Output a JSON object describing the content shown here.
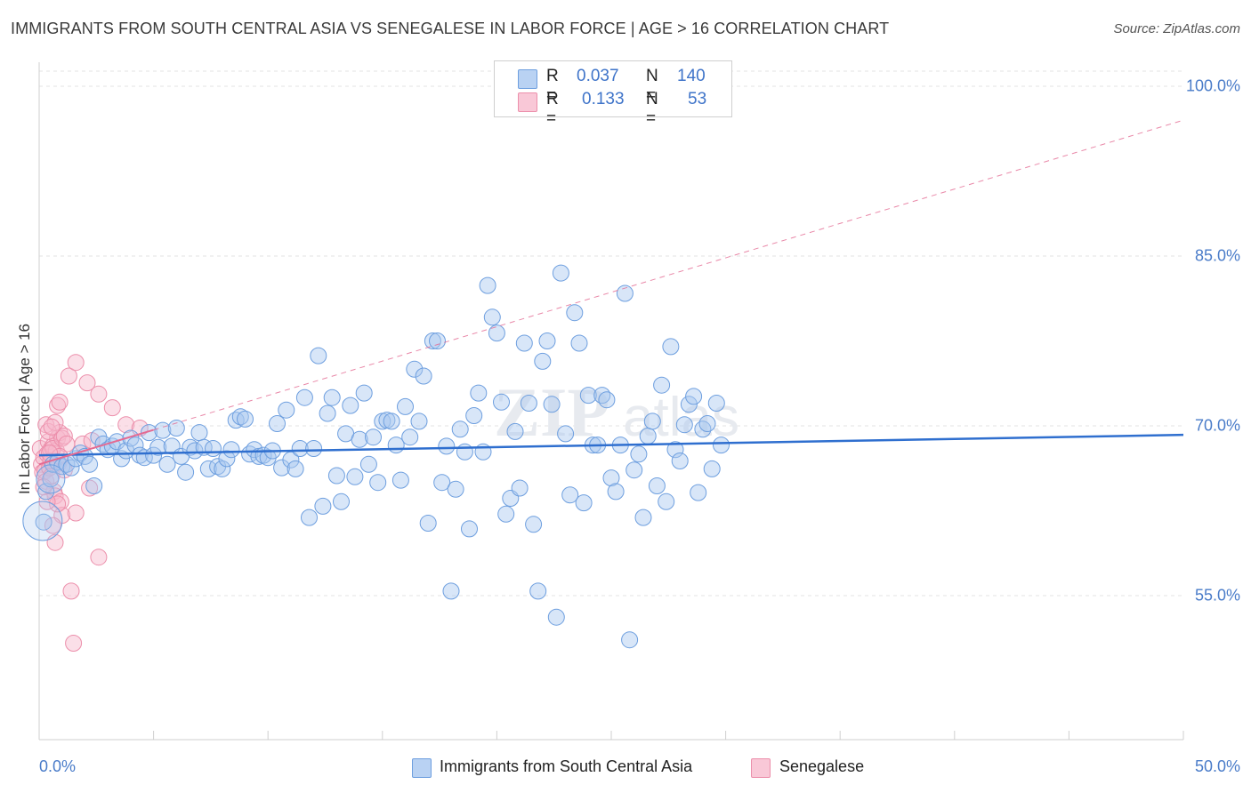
{
  "header": {
    "title": "IMMIGRANTS FROM SOUTH CENTRAL ASIA VS SENEGALESE IN LABOR FORCE | AGE > 16 CORRELATION CHART",
    "source": "Source: ZipAtlas.com"
  },
  "watermark": "ZIPatlas",
  "legend": {
    "rows": [
      {
        "r_label": "R = ",
        "r_value": "0.037",
        "n_label": "N = ",
        "n_value": "140"
      },
      {
        "r_label": "R = ",
        "r_value": "0.133",
        "n_label": "N = ",
        "n_value": "53"
      }
    ]
  },
  "bottom_legend": [
    "Immigrants from South Central Asia",
    "Senegalese"
  ],
  "colors": {
    "blue_fill": "#a9c7ef",
    "blue_stroke": "#6e9fdf",
    "blue_line": "#2f6fcf",
    "pink_fill": "#f7b9cc",
    "pink_stroke": "#ec8fab",
    "pink_line": "#e46a92",
    "tick_text": "#4a7cc9",
    "grid": "#e3e3e3"
  },
  "chart_data": {
    "type": "scatter",
    "title": "IMMIGRANTS FROM SOUTH CENTRAL ASIA VS SENEGALESE IN LABOR FORCE | AGE > 16 CORRELATION CHART",
    "xlabel": "",
    "ylabel": "In Labor Force | Age > 16",
    "xlim": [
      0,
      50
    ],
    "ylim": [
      40,
      102
    ],
    "x_tick_labels": [
      "0.0%",
      "50.0%"
    ],
    "y_ticks": [
      55,
      70,
      85,
      100
    ],
    "y_tick_labels": [
      "55.0%",
      "70.0%",
      "85.0%",
      "100.0%"
    ],
    "grid": true,
    "legend_position": "top-center",
    "series": [
      {
        "name": "Immigrants from South Central Asia",
        "color": "#a9c7ef",
        "r": 0.037,
        "n": 140,
        "trend": {
          "x": [
            0,
            50
          ],
          "y": [
            67.4,
            69.2
          ]
        },
        "points": [
          [
            0.2,
            61.5
          ],
          [
            0.3,
            64.2
          ],
          [
            0.5,
            65.3
          ],
          [
            0.6,
            66.6
          ],
          [
            0.8,
            66.8
          ],
          [
            1.0,
            66.4
          ],
          [
            1.2,
            66.6
          ],
          [
            1.4,
            66.3
          ],
          [
            1.6,
            67.1
          ],
          [
            1.8,
            67.6
          ],
          [
            2.0,
            67.3
          ],
          [
            2.2,
            66.6
          ],
          [
            2.4,
            64.7
          ],
          [
            2.6,
            69.0
          ],
          [
            2.8,
            68.4
          ],
          [
            3.0,
            67.9
          ],
          [
            3.2,
            68.2
          ],
          [
            3.4,
            68.6
          ],
          [
            3.6,
            67.1
          ],
          [
            3.8,
            67.8
          ],
          [
            4.0,
            68.9
          ],
          [
            4.2,
            68.3
          ],
          [
            4.4,
            67.4
          ],
          [
            4.6,
            67.2
          ],
          [
            4.8,
            69.4
          ],
          [
            5.0,
            67.4
          ],
          [
            5.2,
            68.1
          ],
          [
            5.4,
            69.6
          ],
          [
            5.6,
            66.6
          ],
          [
            5.8,
            68.2
          ],
          [
            6.0,
            69.8
          ],
          [
            6.2,
            67.3
          ],
          [
            6.4,
            65.9
          ],
          [
            6.6,
            68.1
          ],
          [
            6.8,
            67.8
          ],
          [
            7.0,
            69.4
          ],
          [
            7.2,
            68.1
          ],
          [
            7.4,
            66.2
          ],
          [
            7.6,
            68.0
          ],
          [
            7.8,
            66.4
          ],
          [
            8.0,
            66.2
          ],
          [
            8.2,
            67.1
          ],
          [
            8.4,
            67.9
          ],
          [
            8.6,
            70.5
          ],
          [
            8.8,
            70.8
          ],
          [
            9.0,
            70.6
          ],
          [
            9.2,
            67.5
          ],
          [
            9.4,
            67.9
          ],
          [
            9.6,
            67.3
          ],
          [
            9.8,
            67.4
          ],
          [
            10.0,
            67.2
          ],
          [
            10.2,
            67.8
          ],
          [
            10.4,
            70.2
          ],
          [
            10.6,
            66.3
          ],
          [
            10.8,
            71.4
          ],
          [
            11.0,
            67.0
          ],
          [
            11.2,
            66.2
          ],
          [
            11.4,
            68.0
          ],
          [
            11.6,
            72.5
          ],
          [
            11.8,
            61.9
          ],
          [
            12.0,
            68.0
          ],
          [
            12.2,
            76.2
          ],
          [
            12.4,
            62.9
          ],
          [
            12.6,
            71.1
          ],
          [
            12.8,
            72.5
          ],
          [
            13.0,
            65.6
          ],
          [
            13.2,
            63.3
          ],
          [
            13.4,
            69.3
          ],
          [
            13.6,
            71.8
          ],
          [
            13.8,
            65.5
          ],
          [
            14.0,
            68.8
          ],
          [
            14.2,
            72.9
          ],
          [
            14.4,
            66.6
          ],
          [
            14.6,
            69.0
          ],
          [
            14.8,
            65.0
          ],
          [
            15.0,
            70.4
          ],
          [
            15.2,
            70.5
          ],
          [
            15.4,
            70.4
          ],
          [
            15.6,
            68.3
          ],
          [
            15.8,
            65.2
          ],
          [
            16.0,
            71.7
          ],
          [
            16.2,
            69.0
          ],
          [
            16.4,
            75.0
          ],
          [
            16.6,
            70.4
          ],
          [
            16.8,
            74.4
          ],
          [
            17.0,
            61.4
          ],
          [
            17.2,
            77.5
          ],
          [
            17.4,
            77.5
          ],
          [
            17.6,
            65.0
          ],
          [
            17.8,
            68.2
          ],
          [
            18.0,
            55.4
          ],
          [
            18.2,
            64.4
          ],
          [
            18.4,
            69.7
          ],
          [
            18.6,
            67.7
          ],
          [
            18.8,
            60.9
          ],
          [
            19.0,
            70.9
          ],
          [
            19.2,
            72.9
          ],
          [
            19.4,
            67.7
          ],
          [
            19.6,
            82.4
          ],
          [
            19.8,
            79.6
          ],
          [
            20.0,
            78.2
          ],
          [
            20.2,
            72.1
          ],
          [
            20.4,
            62.2
          ],
          [
            20.6,
            63.6
          ],
          [
            20.8,
            69.5
          ],
          [
            21.0,
            64.5
          ],
          [
            21.2,
            77.3
          ],
          [
            21.4,
            72.0
          ],
          [
            21.6,
            61.3
          ],
          [
            21.8,
            55.4
          ],
          [
            22.0,
            75.7
          ],
          [
            22.2,
            77.5
          ],
          [
            22.4,
            71.9
          ],
          [
            22.6,
            53.1
          ],
          [
            22.8,
            83.5
          ],
          [
            23.0,
            69.3
          ],
          [
            23.2,
            63.9
          ],
          [
            23.4,
            80.0
          ],
          [
            23.6,
            77.3
          ],
          [
            23.8,
            63.2
          ],
          [
            24.0,
            72.7
          ],
          [
            24.2,
            68.3
          ],
          [
            24.4,
            68.3
          ],
          [
            24.6,
            72.7
          ],
          [
            24.8,
            72.3
          ],
          [
            25.0,
            65.4
          ],
          [
            25.2,
            64.2
          ],
          [
            25.4,
            68.3
          ],
          [
            25.6,
            81.7
          ],
          [
            25.8,
            51.1
          ],
          [
            26.0,
            66.1
          ],
          [
            26.2,
            67.5
          ],
          [
            26.4,
            61.9
          ],
          [
            26.6,
            69.1
          ],
          [
            26.8,
            70.4
          ],
          [
            27.0,
            64.7
          ],
          [
            27.2,
            73.6
          ],
          [
            27.4,
            63.3
          ],
          [
            27.6,
            77.0
          ],
          [
            27.8,
            67.9
          ],
          [
            28.0,
            66.9
          ],
          [
            28.2,
            70.1
          ],
          [
            28.4,
            71.9
          ],
          [
            28.6,
            72.6
          ],
          [
            28.8,
            64.1
          ],
          [
            29.0,
            69.7
          ],
          [
            29.2,
            70.2
          ],
          [
            29.4,
            66.2
          ],
          [
            29.6,
            72.0
          ],
          [
            29.8,
            68.3
          ]
        ]
      },
      {
        "name": "Senegalese",
        "color": "#f7b9cc",
        "r": 0.133,
        "n": 53,
        "trend": {
          "x": [
            0,
            50
          ],
          "y": [
            66.6,
            97.0
          ]
        },
        "points": [
          [
            0.05,
            68.0
          ],
          [
            0.1,
            66.6
          ],
          [
            0.15,
            65.9
          ],
          [
            0.2,
            67.2
          ],
          [
            0.25,
            66.0
          ],
          [
            0.3,
            65.1
          ],
          [
            0.35,
            67.5
          ],
          [
            0.4,
            68.6
          ],
          [
            0.45,
            66.3
          ],
          [
            0.5,
            67.9
          ],
          [
            0.55,
            65.6
          ],
          [
            0.6,
            68.2
          ],
          [
            0.65,
            64.2
          ],
          [
            0.7,
            63.8
          ],
          [
            0.75,
            67.8
          ],
          [
            0.8,
            68.9
          ],
          [
            0.85,
            66.7
          ],
          [
            0.9,
            69.4
          ],
          [
            0.95,
            63.3
          ],
          [
            1.0,
            62.1
          ],
          [
            0.3,
            70.1
          ],
          [
            0.4,
            69.5
          ],
          [
            0.5,
            66.9
          ],
          [
            0.6,
            68.0
          ],
          [
            0.7,
            70.3
          ],
          [
            0.8,
            71.8
          ],
          [
            0.9,
            72.1
          ],
          [
            1.0,
            68.9
          ],
          [
            1.1,
            69.1
          ],
          [
            1.2,
            68.4
          ],
          [
            0.6,
            61.2
          ],
          [
            0.7,
            59.7
          ],
          [
            0.8,
            63.1
          ],
          [
            1.3,
            74.4
          ],
          [
            1.6,
            75.6
          ],
          [
            2.1,
            73.8
          ],
          [
            2.6,
            72.8
          ],
          [
            3.2,
            71.6
          ],
          [
            3.8,
            70.1
          ],
          [
            4.4,
            69.8
          ],
          [
            1.4,
            55.4
          ],
          [
            1.5,
            50.8
          ],
          [
            2.6,
            58.4
          ],
          [
            2.2,
            64.5
          ],
          [
            1.6,
            62.3
          ],
          [
            1.9,
            68.4
          ],
          [
            2.3,
            68.7
          ],
          [
            0.9,
            67.3
          ],
          [
            1.1,
            66.1
          ],
          [
            0.2,
            64.6
          ],
          [
            0.35,
            63.3
          ],
          [
            0.45,
            67.6
          ],
          [
            0.55,
            69.9
          ]
        ]
      }
    ]
  }
}
